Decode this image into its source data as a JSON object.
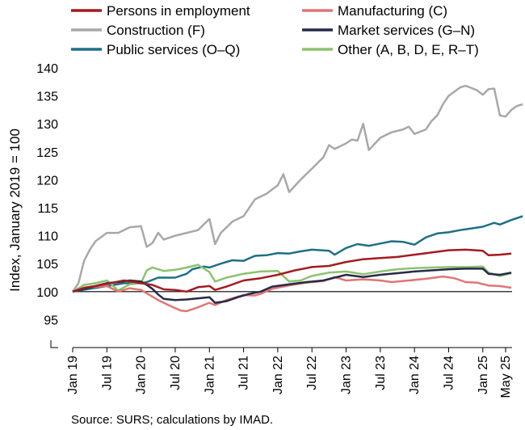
{
  "chart_data": {
    "type": "line",
    "ylabel": "Index, January 2019 = 100",
    "source": "Source: SURS; calculations by IMAD.",
    "ylim": [
      95,
      140
    ],
    "yticks": [
      95,
      100,
      105,
      110,
      115,
      120,
      125,
      130,
      135,
      140
    ],
    "baseline": 100,
    "x_tick_labels": [
      "Jan 19",
      "Jul 19",
      "Jan 20",
      "Jul 20",
      "Jan 21",
      "Jul 21",
      "Jan 22",
      "Jul 22",
      "Jan 23",
      "Jul 23",
      "Jan 24",
      "Jul 24",
      "Jan 25",
      "May 25"
    ],
    "x_start": "Jan 2019",
    "x_end": "May 2025",
    "series": [
      {
        "name": "Persons in employment",
        "color": "#a31b20",
        "points": [
          [
            0,
            100
          ],
          [
            2,
            100.7
          ],
          [
            4,
            101
          ],
          [
            6,
            101.4
          ],
          [
            9,
            102
          ],
          [
            12,
            101.5
          ],
          [
            14,
            101.2
          ],
          [
            16,
            100.4
          ],
          [
            18,
            100.3
          ],
          [
            20,
            100
          ],
          [
            22,
            100.8
          ],
          [
            24,
            101
          ],
          [
            25,
            100.3
          ],
          [
            27,
            100.9
          ],
          [
            30,
            102
          ],
          [
            33,
            102.4
          ],
          [
            36,
            103
          ],
          [
            39,
            103.8
          ],
          [
            42,
            104.4
          ],
          [
            45,
            104.6
          ],
          [
            48,
            105.3
          ],
          [
            51,
            105.8
          ],
          [
            54,
            106
          ],
          [
            57,
            106.2
          ],
          [
            60,
            106.6
          ],
          [
            63,
            107
          ],
          [
            66,
            107.4
          ],
          [
            69,
            107.5
          ],
          [
            72,
            107.3
          ],
          [
            73,
            106.5
          ],
          [
            75,
            106.6
          ],
          [
            77,
            106.8
          ]
        ]
      },
      {
        "name": "Manufacturing (C)",
        "color": "#e07575",
        "points": [
          [
            0,
            100
          ],
          [
            3,
            100.8
          ],
          [
            6,
            101
          ],
          [
            8,
            100
          ],
          [
            10,
            100.6
          ],
          [
            12,
            100.3
          ],
          [
            13,
            99.7
          ],
          [
            15,
            98.5
          ],
          [
            17,
            97.5
          ],
          [
            19,
            96.6
          ],
          [
            20,
            96.5
          ],
          [
            22,
            97.2
          ],
          [
            24,
            98
          ],
          [
            25,
            97.6
          ],
          [
            27,
            98.5
          ],
          [
            30,
            99.4
          ],
          [
            32,
            99.3
          ],
          [
            33,
            99.6
          ],
          [
            35,
            100.5
          ],
          [
            38,
            101.1
          ],
          [
            41,
            101.6
          ],
          [
            44,
            101.9
          ],
          [
            46,
            102.6
          ],
          [
            48,
            102
          ],
          [
            51,
            102.2
          ],
          [
            54,
            102
          ],
          [
            56,
            101.7
          ],
          [
            59,
            102
          ],
          [
            62,
            102.3
          ],
          [
            65,
            102.7
          ],
          [
            67,
            102.4
          ],
          [
            69,
            101.7
          ],
          [
            71,
            101.6
          ],
          [
            73,
            101.1
          ],
          [
            75,
            101
          ],
          [
            77,
            100.7
          ]
        ]
      },
      {
        "name": "Construction (F)",
        "color": "#a8a8a8",
        "points": [
          [
            0,
            100
          ],
          [
            1,
            101.5
          ],
          [
            2,
            105.5
          ],
          [
            3,
            107.5
          ],
          [
            4,
            109
          ],
          [
            6,
            110.5
          ],
          [
            8,
            110.5
          ],
          [
            10,
            111.5
          ],
          [
            12,
            111.7
          ],
          [
            13,
            108
          ],
          [
            14,
            108.7
          ],
          [
            15,
            110.5
          ],
          [
            16,
            109.3
          ],
          [
            18,
            110
          ],
          [
            20,
            110.5
          ],
          [
            22,
            111
          ],
          [
            24,
            113
          ],
          [
            25,
            108.5
          ],
          [
            26,
            110.5
          ],
          [
            28,
            112.5
          ],
          [
            30,
            113.5
          ],
          [
            32,
            116.5
          ],
          [
            34,
            117.5
          ],
          [
            36,
            119
          ],
          [
            37,
            121
          ],
          [
            38,
            117.8
          ],
          [
            40,
            120
          ],
          [
            42,
            122
          ],
          [
            44,
            124
          ],
          [
            45,
            126.2
          ],
          [
            46,
            125.5
          ],
          [
            48,
            126.5
          ],
          [
            49,
            127.2
          ],
          [
            50,
            127
          ],
          [
            51,
            130
          ],
          [
            52,
            125.3
          ],
          [
            54,
            127.5
          ],
          [
            56,
            128.5
          ],
          [
            58,
            129
          ],
          [
            59,
            129.5
          ],
          [
            60,
            128.2
          ],
          [
            62,
            129
          ],
          [
            63,
            130.5
          ],
          [
            64,
            131.5
          ],
          [
            65,
            133.5
          ],
          [
            66,
            135
          ],
          [
            68,
            136.5
          ],
          [
            69,
            136.8
          ],
          [
            71,
            136
          ],
          [
            72,
            135.2
          ],
          [
            73,
            136.2
          ],
          [
            74,
            136.3
          ],
          [
            75,
            131.5
          ],
          [
            76,
            131.3
          ],
          [
            77,
            132.5
          ],
          [
            78,
            133.2
          ],
          [
            79,
            133.5
          ]
        ]
      },
      {
        "name": "Market services (G–N)",
        "color": "#272a48",
        "points": [
          [
            0,
            100
          ],
          [
            2,
            100.5
          ],
          [
            4,
            101
          ],
          [
            6,
            101.5
          ],
          [
            8,
            101.7
          ],
          [
            10,
            102
          ],
          [
            12,
            101.8
          ],
          [
            13,
            101.2
          ],
          [
            14,
            100.5
          ],
          [
            15,
            99.5
          ],
          [
            16,
            98.7
          ],
          [
            18,
            98.5
          ],
          [
            20,
            98.6
          ],
          [
            22,
            98.8
          ],
          [
            24,
            99
          ],
          [
            25,
            98
          ],
          [
            27,
            98.3
          ],
          [
            29,
            99
          ],
          [
            31,
            99.6
          ],
          [
            33,
            100
          ],
          [
            35,
            100.9
          ],
          [
            38,
            101.3
          ],
          [
            41,
            101.7
          ],
          [
            44,
            102
          ],
          [
            46,
            102.5
          ],
          [
            48,
            103
          ],
          [
            51,
            102.6
          ],
          [
            54,
            103
          ],
          [
            57,
            103.3
          ],
          [
            60,
            103.6
          ],
          [
            63,
            103.8
          ],
          [
            66,
            104
          ],
          [
            69,
            104.1
          ],
          [
            72,
            104.1
          ],
          [
            73,
            103.2
          ],
          [
            75,
            103
          ],
          [
            77,
            103.4
          ]
        ]
      },
      {
        "name": "Public services (O–Q)",
        "color": "#1f6f86",
        "points": [
          [
            0,
            100
          ],
          [
            3,
            100.5
          ],
          [
            6,
            101
          ],
          [
            9,
            101.5
          ],
          [
            12,
            101.5
          ],
          [
            13,
            101.7
          ],
          [
            15,
            102.5
          ],
          [
            18,
            102.5
          ],
          [
            20,
            103.2
          ],
          [
            21,
            104
          ],
          [
            23,
            104.5
          ],
          [
            24,
            104.3
          ],
          [
            26,
            105
          ],
          [
            28,
            105.6
          ],
          [
            30,
            105.5
          ],
          [
            32,
            106.4
          ],
          [
            34,
            106.5
          ],
          [
            36,
            106.9
          ],
          [
            38,
            106.8
          ],
          [
            40,
            107.2
          ],
          [
            42,
            107.5
          ],
          [
            45,
            107.3
          ],
          [
            46,
            106.6
          ],
          [
            48,
            107.8
          ],
          [
            50,
            108.5
          ],
          [
            52,
            108.2
          ],
          [
            54,
            108.6
          ],
          [
            56,
            109
          ],
          [
            58,
            108.9
          ],
          [
            60,
            108.4
          ],
          [
            62,
            109.7
          ],
          [
            64,
            110.4
          ],
          [
            66,
            110.6
          ],
          [
            68,
            111
          ],
          [
            70,
            111.3
          ],
          [
            72,
            111.6
          ],
          [
            74,
            112.3
          ],
          [
            75,
            112
          ],
          [
            77,
            112.8
          ],
          [
            79,
            113.5
          ]
        ]
      },
      {
        "name": "Other (A, B, D, E, R–T)",
        "color": "#8dc26f",
        "points": [
          [
            0,
            100
          ],
          [
            2,
            101.2
          ],
          [
            4,
            101.5
          ],
          [
            6,
            102
          ],
          [
            8,
            100.2
          ],
          [
            10,
            101.3
          ],
          [
            12,
            101.5
          ],
          [
            13,
            103.8
          ],
          [
            14,
            104.3
          ],
          [
            16,
            103.7
          ],
          [
            18,
            103.9
          ],
          [
            20,
            104.3
          ],
          [
            22,
            104.8
          ],
          [
            24,
            103.5
          ],
          [
            25,
            101.8
          ],
          [
            27,
            102.5
          ],
          [
            30,
            103.2
          ],
          [
            33,
            103.6
          ],
          [
            36,
            103.7
          ],
          [
            38,
            101.8
          ],
          [
            40,
            102
          ],
          [
            42,
            102.8
          ],
          [
            45,
            103.4
          ],
          [
            48,
            103.6
          ],
          [
            51,
            103.1
          ],
          [
            54,
            103.6
          ],
          [
            57,
            104
          ],
          [
            60,
            104.2
          ],
          [
            63,
            104.3
          ],
          [
            66,
            104.4
          ],
          [
            69,
            104.4
          ],
          [
            72,
            104.5
          ],
          [
            73,
            103.4
          ],
          [
            75,
            102.8
          ],
          [
            77,
            103.3
          ]
        ]
      }
    ]
  }
}
